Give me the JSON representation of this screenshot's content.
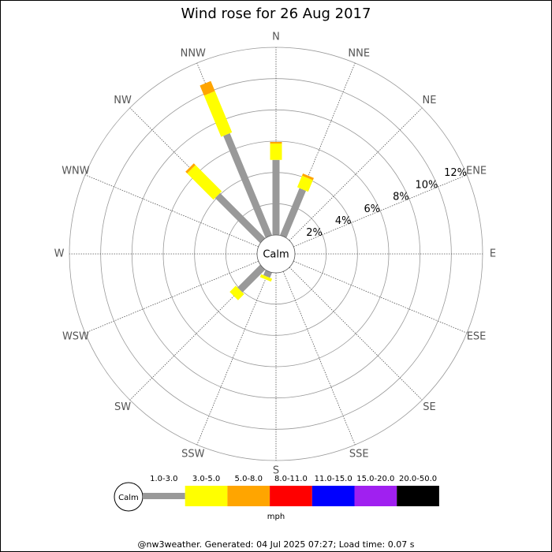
{
  "chart_data": {
    "type": "windrose",
    "title": "Wind rose for 26 Aug 2017",
    "center_label": "Calm",
    "categories": [
      "N",
      "NNE",
      "NE",
      "ENE",
      "E",
      "ESE",
      "SE",
      "SSE",
      "S",
      "SSW",
      "SW",
      "WSW",
      "W",
      "WNW",
      "NW",
      "NNW"
    ],
    "series": [
      {
        "name": "1.0-3.0",
        "color": "#999999",
        "values": [
          4.8,
          3.25,
          0,
          0,
          0,
          0,
          0,
          0,
          0,
          0.35,
          2.05,
          0,
          0,
          0,
          4.07,
          7.05
        ]
      },
      {
        "name": "3.0-5.0",
        "color": "#ffff00",
        "values": [
          1.05,
          0.8,
          0,
          0,
          0,
          0,
          0,
          0,
          0,
          0.2,
          0.55,
          0,
          0,
          0,
          2.38,
          2.85
        ]
      },
      {
        "name": "5.0-8.0",
        "color": "#ffa500",
        "values": [
          0.1,
          0.15,
          0,
          0,
          0,
          0,
          0,
          0,
          0,
          0,
          0,
          0,
          0,
          0,
          0.15,
          0.7
        ]
      },
      {
        "name": "8.0-11.0",
        "color": "#ff0000",
        "values": [
          0,
          0,
          0,
          0,
          0,
          0,
          0,
          0,
          0,
          0,
          0,
          0,
          0,
          0,
          0,
          0
        ]
      },
      {
        "name": "11.0-15.0",
        "color": "#0000ff",
        "values": [
          0,
          0,
          0,
          0,
          0,
          0,
          0,
          0,
          0,
          0,
          0,
          0,
          0,
          0,
          0,
          0
        ]
      },
      {
        "name": "15.0-20.0",
        "color": "#a020f0",
        "values": [
          0,
          0,
          0,
          0,
          0,
          0,
          0,
          0,
          0,
          0,
          0,
          0,
          0,
          0,
          0,
          0
        ]
      },
      {
        "name": "20.0-50.0",
        "color": "#000000",
        "values": [
          0,
          0,
          0,
          0,
          0,
          0,
          0,
          0,
          0,
          0,
          0,
          0,
          0,
          0,
          0,
          0
        ]
      }
    ],
    "rlim": [
      0,
      12
    ],
    "rticks": [
      {
        "value": 2,
        "label": "2%"
      },
      {
        "value": 4,
        "label": "4%"
      },
      {
        "value": 6,
        "label": "6%"
      },
      {
        "value": 8,
        "label": "8%"
      },
      {
        "value": 10,
        "label": "10%"
      },
      {
        "value": 12,
        "label": "12%"
      }
    ],
    "legend_label": "Calm",
    "legend_unit": "mph",
    "footer": "@nw3weather. Generated: 04 Jul 2025 07:27; Load time: 0.07 s"
  }
}
